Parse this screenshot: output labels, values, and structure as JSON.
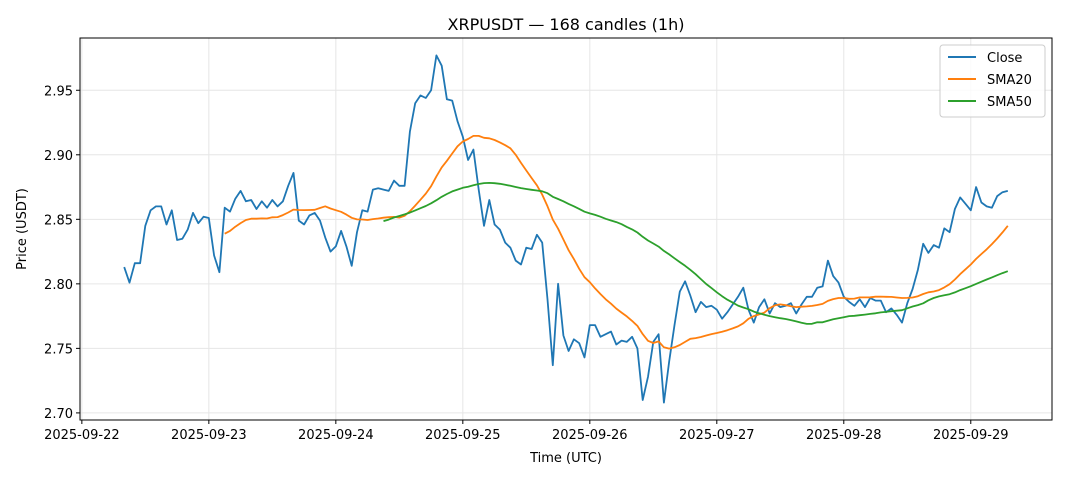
{
  "chart_data": {
    "type": "line",
    "title": "XRPUSDT — 168 candles (1h)",
    "xlabel": "Time (UTC)",
    "ylabel": "Price (USDT)",
    "x_start": "2025-09-22T08:00Z",
    "x_interval_hours": 1,
    "xlim_hours_from_2025_09_22": [
      -0.35,
      183.35
    ],
    "ylim": [
      2.6945,
      2.9905
    ],
    "grid": true,
    "legend_position": "top-right",
    "x_ticks": [
      {
        "label": "2025-09-22",
        "hour": 0
      },
      {
        "label": "2025-09-23",
        "hour": 24
      },
      {
        "label": "2025-09-24",
        "hour": 48
      },
      {
        "label": "2025-09-25",
        "hour": 72
      },
      {
        "label": "2025-09-26",
        "hour": 96
      },
      {
        "label": "2025-09-27",
        "hour": 120
      },
      {
        "label": "2025-09-28",
        "hour": 144
      },
      {
        "label": "2025-09-29",
        "hour": 168
      }
    ],
    "y_ticks": [
      {
        "label": "2.70",
        "value": 2.7
      },
      {
        "label": "2.75",
        "value": 2.75
      },
      {
        "label": "2.80",
        "value": 2.8
      },
      {
        "label": "2.85",
        "value": 2.85
      },
      {
        "label": "2.90",
        "value": 2.9
      },
      {
        "label": "2.95",
        "value": 2.95
      }
    ],
    "series": [
      {
        "name": "Close",
        "color": "#1f77b4",
        "kind": "raw",
        "values": [
          2.813,
          2.801,
          2.816,
          2.816,
          2.845,
          2.857,
          2.86,
          2.86,
          2.846,
          2.857,
          2.834,
          2.835,
          2.842,
          2.855,
          2.847,
          2.852,
          2.851,
          2.822,
          2.809,
          2.859,
          2.856,
          2.866,
          2.872,
          2.864,
          2.865,
          2.858,
          2.864,
          2.859,
          2.865,
          2.86,
          2.864,
          2.876,
          2.886,
          2.849,
          2.846,
          2.853,
          2.855,
          2.849,
          2.836,
          2.825,
          2.829,
          2.841,
          2.829,
          2.814,
          2.84,
          2.857,
          2.856,
          2.873,
          2.874,
          2.873,
          2.872,
          2.88,
          2.876,
          2.876,
          2.918,
          2.94,
          2.946,
          2.944,
          2.95,
          2.977,
          2.969,
          2.943,
          2.942,
          2.926,
          2.914,
          2.896,
          2.904,
          2.873,
          2.845,
          2.865,
          2.846,
          2.842,
          2.832,
          2.828,
          2.818,
          2.815,
          2.828,
          2.827,
          2.838,
          2.832,
          2.788,
          2.737,
          2.8,
          2.76,
          2.748,
          2.757,
          2.754,
          2.743,
          2.768,
          2.768,
          2.759,
          2.761,
          2.763,
          2.753,
          2.756,
          2.755,
          2.759,
          2.75,
          2.71,
          2.728,
          2.755,
          2.761,
          2.708,
          2.74,
          2.768,
          2.794,
          2.802,
          2.791,
          2.778,
          2.786,
          2.782,
          2.783,
          2.78,
          2.773,
          2.778,
          2.784,
          2.79,
          2.797,
          2.78,
          2.77,
          2.782,
          2.788,
          2.777,
          2.785,
          2.782,
          2.783,
          2.785,
          2.777,
          2.784,
          2.79,
          2.79,
          2.797,
          2.798,
          2.818,
          2.806,
          2.801,
          2.79,
          2.786,
          2.783,
          2.788,
          2.782,
          2.789,
          2.787,
          2.787,
          2.778,
          2.781,
          2.776,
          2.77,
          2.785,
          2.796,
          2.811,
          2.831,
          2.824,
          2.83,
          2.828,
          2.843,
          2.84,
          2.858,
          2.867,
          2.862,
          2.857,
          2.875,
          2.863,
          2.86,
          2.859,
          2.868,
          2.871,
          2.872
        ]
      },
      {
        "name": "SMA20",
        "color": "#ff7f0e",
        "kind": "sma",
        "window": 20
      },
      {
        "name": "SMA50",
        "color": "#2ca02c",
        "kind": "sma",
        "window": 50
      }
    ]
  }
}
